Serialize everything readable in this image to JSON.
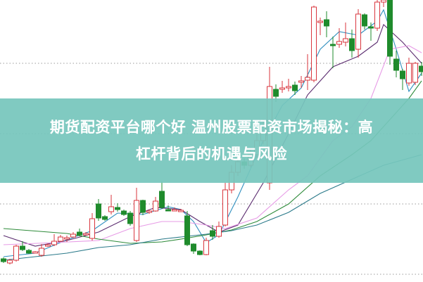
{
  "banner": {
    "title_line1": "期货配资平台哪个好 温州股票配资市场揭秘：高",
    "title_line2": "杠杆背后的机遇与风险",
    "background": "#76c6bc",
    "text_color": "#ffffff"
  },
  "chart_data": {
    "type": "candlestick",
    "title": "",
    "xlabel": "",
    "ylabel": "",
    "ylim": [
      0,
      40
    ],
    "grid": true,
    "gridlines": [
      1,
      11,
      21,
      31
    ],
    "colors": {
      "up": "#d9363e",
      "down": "#1f8b2c",
      "grid": "#999999"
    },
    "candles_fields": [
      "open",
      "close",
      "high",
      "low"
    ],
    "candles": [
      [
        3.2,
        2.8,
        3.4,
        2.6
      ],
      [
        2.6,
        3.0,
        3.2,
        2.4
      ],
      [
        3.0,
        5.0,
        5.2,
        2.8
      ],
      [
        5.0,
        4.5,
        5.7,
        4.3
      ],
      [
        4.4,
        4.0,
        4.6,
        3.9
      ],
      [
        4.2,
        4.2,
        4.3,
        4.1
      ],
      [
        3.7,
        4.7,
        5.3,
        3.5
      ],
      [
        5.0,
        5.2,
        5.4,
        4.9
      ],
      [
        5.2,
        5.7,
        6.7,
        5.0
      ],
      [
        5.7,
        6.3,
        6.6,
        5.6
      ],
      [
        6.0,
        6.2,
        6.5,
        5.6
      ],
      [
        6.3,
        6.7,
        7.0,
        6.2
      ],
      [
        7.0,
        6.6,
        7.5,
        6.4
      ],
      [
        6.7,
        6.8,
        7.0,
        6.6
      ],
      [
        6.1,
        8.9,
        9.7,
        5.8
      ],
      [
        11.0,
        9.0,
        11.7,
        8.6
      ],
      [
        9.2,
        8.8,
        9.4,
        8.6
      ],
      [
        9.9,
        10.6,
        12.3,
        9.5
      ],
      [
        10.5,
        10.2,
        11.1,
        9.9
      ],
      [
        10.0,
        9.5,
        10.2,
        9.3
      ],
      [
        9.7,
        8.2,
        10.0,
        7.9
      ],
      [
        5.8,
        11.5,
        13.3,
        5.6
      ],
      [
        11.5,
        9.8,
        11.6,
        9.4
      ],
      [
        10.0,
        10.0,
        10.2,
        9.6
      ],
      [
        10.0,
        11.4,
        12.0,
        9.9
      ],
      [
        12.8,
        10.5,
        14.2,
        10.3
      ],
      [
        10.2,
        10.1,
        10.8,
        10.0
      ],
      [
        10.1,
        10.2,
        10.5,
        10.0
      ],
      [
        10.0,
        10.1,
        10.3,
        9.9
      ],
      [
        9.3,
        5.2,
        10.0,
        5.0
      ],
      [
        5.3,
        4.3,
        5.4,
        3.9
      ],
      [
        4.3,
        3.8,
        4.4,
        3.7
      ],
      [
        3.8,
        5.8,
        6.2,
        3.7
      ],
      [
        7.2,
        6.4,
        8.0,
        5.9
      ],
      [
        6.4,
        7.8,
        8.5,
        6.2
      ],
      [
        8.0,
        13.0,
        14.0,
        7.8
      ],
      [
        13.0,
        15.5,
        16.5,
        12.5
      ],
      [
        15.5,
        17.0,
        18.0,
        15.0
      ],
      [
        17.0,
        16.5,
        17.5,
        16.0
      ],
      [
        16.5,
        18.0,
        19.0,
        16.2
      ],
      [
        18.0,
        20.0,
        21.0,
        17.5
      ],
      [
        20.0,
        22.0,
        23.0,
        19.5
      ],
      [
        14.0,
        27.7,
        30.5,
        13.0
      ],
      [
        27.3,
        26.3,
        28.0,
        25.5
      ],
      [
        27.3,
        27.5,
        28.5,
        26.8
      ],
      [
        27.6,
        27.7,
        28.8,
        27.0
      ],
      [
        27.9,
        27.1,
        28.4,
        26.5
      ],
      [
        28.3,
        28.5,
        29.2,
        27.5
      ],
      [
        28.6,
        29.0,
        32.3,
        27.2
      ],
      [
        28.6,
        39.0,
        39.2,
        28.3
      ],
      [
        37.0,
        37.0,
        37.5,
        35.0
      ],
      [
        37.2,
        36.3,
        38.4,
        34.7
      ],
      [
        33.7,
        33.6,
        34.8,
        30.3
      ],
      [
        33.7,
        34.1,
        36.0,
        33.2
      ],
      [
        34.0,
        34.5,
        36.8,
        33.4
      ],
      [
        34.5,
        32.8,
        35.8,
        31.8
      ],
      [
        33.0,
        38.0,
        38.7,
        31.8
      ],
      [
        37.9,
        36.3,
        38.1,
        35.8
      ],
      [
        36.2,
        36.0,
        36.8,
        34.2
      ],
      [
        36.0,
        39.7,
        40.0,
        35.6
      ],
      [
        39.7,
        40.0,
        40.0,
        39.0
      ],
      [
        40.0,
        32.0,
        40.0,
        30.8
      ],
      [
        31.6,
        30.0,
        32.8,
        29.0
      ],
      [
        29.9,
        28.8,
        30.2,
        27.2
      ],
      [
        28.2,
        31.0,
        31.8,
        27.8
      ],
      [
        28.3,
        31.0,
        31.2,
        27.9
      ],
      [
        30.6,
        29.8,
        31.2,
        29.2
      ]
    ],
    "moving_averages": [
      {
        "color": "#2f8fbf",
        "points": [
          [
            0,
            3.5
          ],
          [
            5,
            4.0
          ],
          [
            10,
            5.9
          ],
          [
            14,
            7.2
          ],
          [
            18,
            9.7
          ],
          [
            22,
            9.5
          ],
          [
            26,
            10.6
          ],
          [
            28,
            10.2
          ],
          [
            30,
            8.5
          ],
          [
            32,
            5.5
          ],
          [
            34,
            6.6
          ],
          [
            37,
            12
          ],
          [
            41,
            20
          ],
          [
            44,
            25
          ],
          [
            47,
            27.5
          ],
          [
            50,
            33
          ],
          [
            53,
            35.5
          ],
          [
            56,
            35
          ],
          [
            59,
            37
          ],
          [
            60,
            38.6
          ],
          [
            62,
            33
          ],
          [
            64,
            27
          ],
          [
            66,
            29.6
          ]
        ]
      },
      {
        "color": "#5b2c6f",
        "points": [
          [
            0,
            6.5
          ],
          [
            5,
            5.0
          ],
          [
            10,
            5.8
          ],
          [
            15,
            7.0
          ],
          [
            20,
            9.2
          ],
          [
            24,
            10.5
          ],
          [
            28,
            10.2
          ],
          [
            31,
            8.5
          ],
          [
            34,
            7.0
          ],
          [
            37,
            8.0
          ],
          [
            41,
            14
          ],
          [
            45,
            21
          ],
          [
            48,
            26.5
          ],
          [
            52,
            30.5
          ],
          [
            56,
            32
          ],
          [
            59,
            34
          ],
          [
            60,
            36.5
          ],
          [
            63,
            34
          ],
          [
            66,
            31
          ]
        ]
      },
      {
        "color": "#e79be6",
        "points": [
          [
            0,
            5.2
          ],
          [
            8,
            5.5
          ],
          [
            15,
            5.8
          ],
          [
            20,
            7.5
          ],
          [
            25,
            8.5
          ],
          [
            28,
            8.5
          ],
          [
            32,
            8.0
          ],
          [
            35,
            7.5
          ],
          [
            40,
            9.0
          ],
          [
            45,
            13
          ],
          [
            48,
            15
          ],
          [
            52,
            20
          ],
          [
            55,
            22
          ],
          [
            58,
            26
          ],
          [
            61,
            33
          ],
          [
            64,
            33.5
          ],
          [
            66,
            32.5
          ]
        ]
      },
      {
        "color": "#2e8b3a",
        "points": [
          [
            0,
            7.5
          ],
          [
            10,
            6.8
          ],
          [
            15,
            6.0
          ],
          [
            20,
            5.4
          ],
          [
            25,
            5.6
          ],
          [
            28,
            6.0
          ],
          [
            32,
            6.6
          ],
          [
            36,
            7.3
          ],
          [
            40,
            8.5
          ],
          [
            45,
            11
          ],
          [
            50,
            15
          ],
          [
            55,
            18
          ],
          [
            58,
            20
          ],
          [
            61,
            23
          ],
          [
            64,
            26
          ],
          [
            66,
            28.5
          ]
        ]
      },
      {
        "color": "#2b7a8a",
        "points": [
          [
            0,
            3.0
          ],
          [
            10,
            4.0
          ],
          [
            15,
            4.8
          ],
          [
            20,
            5.2
          ],
          [
            25,
            6.0
          ],
          [
            28,
            6.3
          ],
          [
            32,
            6.7
          ],
          [
            36,
            7.2
          ],
          [
            40,
            8.0
          ],
          [
            45,
            9.8
          ],
          [
            50,
            12.5
          ],
          [
            55,
            14.5
          ],
          [
            60,
            16.5
          ],
          [
            66,
            18
          ]
        ]
      }
    ]
  }
}
